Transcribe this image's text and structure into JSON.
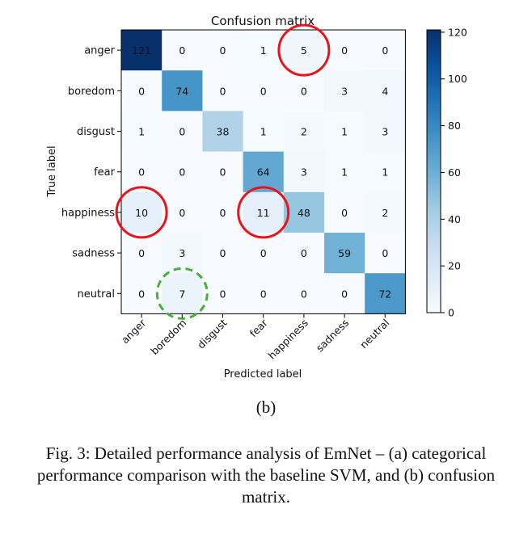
{
  "chart_data": {
    "type": "heatmap",
    "title": "Confusion matrix",
    "xlabel": "Predicted label",
    "ylabel": "True label",
    "row_labels": [
      "anger",
      "boredom",
      "disgust",
      "fear",
      "happiness",
      "sadness",
      "neutral"
    ],
    "col_labels": [
      "anger",
      "boredom",
      "disgust",
      "fear",
      "happiness",
      "sadness",
      "neutral"
    ],
    "values": [
      [
        121,
        0,
        0,
        1,
        5,
        0,
        0
      ],
      [
        0,
        74,
        0,
        0,
        0,
        3,
        4
      ],
      [
        1,
        0,
        38,
        1,
        2,
        1,
        3
      ],
      [
        0,
        0,
        0,
        64,
        3,
        1,
        1
      ],
      [
        10,
        0,
        0,
        11,
        48,
        0,
        2
      ],
      [
        0,
        3,
        0,
        0,
        0,
        59,
        0
      ],
      [
        0,
        7,
        0,
        0,
        0,
        0,
        72
      ]
    ],
    "colorbar": {
      "ticks": [
        0,
        20,
        40,
        60,
        80,
        100,
        120
      ],
      "range": [
        0,
        121
      ],
      "colormap": "Blues"
    },
    "highlights": [
      {
        "row": 0,
        "col": 4,
        "style": "solid",
        "color": "#e8141c"
      },
      {
        "row": 4,
        "col": 0,
        "style": "solid",
        "color": "#e8141c"
      },
      {
        "row": 4,
        "col": 3,
        "style": "solid",
        "color": "#e8141c"
      },
      {
        "row": 6,
        "col": 1,
        "style": "dashed",
        "color": "#4cae3a"
      }
    ]
  },
  "sub_caption": "(b)",
  "figure_caption": "Fig. 3: Detailed performance analysis of EmNet – (a) categorical performance comparison with the baseline SVM, and (b) confusion matrix."
}
